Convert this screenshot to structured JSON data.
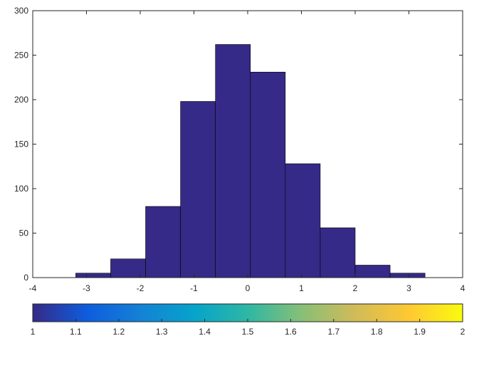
{
  "chart_data": [
    {
      "type": "bar",
      "subtype": "histogram",
      "bin_edges": [
        -3.2,
        -2.55,
        -1.9,
        -1.25,
        -0.6,
        0.05,
        0.7,
        1.35,
        2.0,
        2.65,
        3.3
      ],
      "values": [
        5,
        21,
        80,
        198,
        262,
        231,
        128,
        56,
        14,
        5
      ],
      "bar_color": "#352a87",
      "edge_color": "#000000",
      "xlim": [
        -4,
        4
      ],
      "ylim": [
        0,
        300
      ],
      "xticks": [
        "-4",
        "-3",
        "-2",
        "-1",
        "0",
        "1",
        "2",
        "3",
        "4"
      ],
      "yticks": [
        "0",
        "50",
        "100",
        "150",
        "200",
        "250",
        "300"
      ],
      "title": "",
      "xlabel": "",
      "ylabel": "",
      "grid": false,
      "box": true
    },
    {
      "type": "colorbar",
      "orientation": "horizontal",
      "placement": "below",
      "colormap": "parula",
      "colormap_stops": [
        "#352a87",
        "#0f5cdd",
        "#1481d6",
        "#06a4ca",
        "#2eb7a4",
        "#87bf77",
        "#d1bb59",
        "#fec832",
        "#f9fb0e"
      ],
      "range": [
        1,
        2
      ],
      "ticks": [
        "1",
        "1.1",
        "1.2",
        "1.3",
        "1.4",
        "1.5",
        "1.6",
        "1.7",
        "1.8",
        "1.9",
        "2"
      ]
    }
  ]
}
